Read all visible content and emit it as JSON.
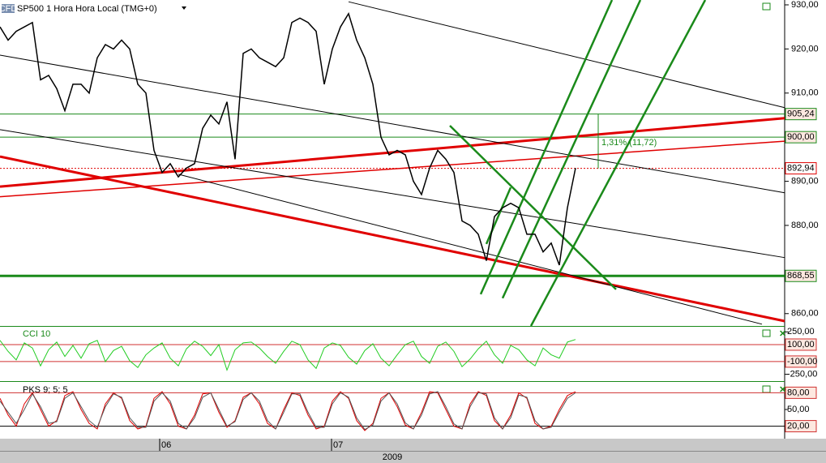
{
  "chart_data": {
    "type": "line",
    "title": "SP500 1 Hora Hora Local (TMG+0)",
    "logo": "CFD",
    "xlim": [
      0,
      96.8
    ],
    "x": [
      0,
      1,
      2,
      3,
      4,
      5,
      6,
      7,
      8,
      9,
      10,
      11,
      12,
      13,
      14,
      15,
      16,
      17,
      18,
      19,
      20,
      21,
      22,
      23,
      24,
      25,
      26,
      27,
      28,
      29,
      30,
      31,
      32,
      33,
      34,
      35,
      36,
      37,
      38,
      39,
      40,
      41,
      42,
      43,
      44,
      45,
      46,
      47,
      48,
      49,
      50,
      51,
      52,
      53,
      54,
      55,
      56,
      57,
      58,
      59,
      60,
      61,
      62,
      63,
      64,
      65,
      66,
      67,
      68,
      69,
      70,
      71
    ],
    "series": [
      {
        "color": "#000000",
        "values": [
          925,
          922,
          924,
          925,
          926,
          913,
          914,
          911,
          906,
          912,
          912,
          910,
          918,
          921,
          920,
          922,
          920,
          912,
          910,
          897,
          892,
          894,
          891,
          893,
          894,
          902,
          905,
          903,
          908,
          895,
          919,
          920,
          918,
          917,
          916,
          918,
          926,
          927,
          926,
          924,
          912,
          920,
          925,
          928,
          922,
          918,
          912,
          900,
          896,
          897,
          896,
          890,
          887,
          893,
          897,
          895,
          892,
          881,
          880,
          878,
          872,
          882,
          884,
          885,
          884,
          878,
          878,
          874,
          876,
          871,
          884,
          893
        ]
      }
    ],
    "ylim": [
      857.2,
      931.1
    ],
    "yticks": [
      {
        "value": 930,
        "label": "930,00"
      },
      {
        "value": 920,
        "label": "920,00"
      },
      {
        "value": 910,
        "label": "910,00"
      },
      {
        "value": 890,
        "label": "890,00"
      },
      {
        "value": 880,
        "label": "880,00"
      },
      {
        "value": 860,
        "label": "860,00"
      }
    ],
    "levels": [
      {
        "value": 905.24,
        "label": "905,24",
        "color": "#1a8a1a",
        "style": "solid"
      },
      {
        "value": 900,
        "label": "900,00",
        "color": "#1a8a1a",
        "style": "solid"
      },
      {
        "value": 892.94,
        "label": "892,94",
        "color": "#e00000",
        "style": "dotted"
      },
      {
        "value": 868.55,
        "label": "868,55",
        "color": "#1a8a1a",
        "style": "thick"
      }
    ],
    "trendlines": [
      {
        "x": [
          0,
          96.8
        ],
        "y": [
          895.6,
          858.3
        ],
        "color": "#e00000",
        "width": 3
      },
      {
        "x": [
          0,
          96.8
        ],
        "y": [
          888.8,
          904.3
        ],
        "color": "#e00000",
        "width": 3
      },
      {
        "x": [
          0,
          96.8
        ],
        "y": [
          886.5,
          899.1
        ],
        "color": "#e00000",
        "width": 1.5
      },
      {
        "x": [
          43,
          96.8
        ],
        "y": [
          930.7,
          906.7
        ],
        "color": "#000000",
        "width": 1
      },
      {
        "x": [
          0,
          96.8
        ],
        "y": [
          918.6,
          887.4
        ],
        "color": "#000000",
        "width": 1
      },
      {
        "x": [
          0,
          96.8
        ],
        "y": [
          901.7,
          872.7
        ],
        "color": "#000000",
        "width": 1
      },
      {
        "x": [
          22,
          94
        ],
        "y": [
          891.6,
          857.6
        ],
        "color": "#000000",
        "width": 1
      },
      {
        "x": [
          59.3,
          75.5
        ],
        "y": [
          864.4,
          931.1
        ],
        "color": "#1a8a1a",
        "width": 2.5
      },
      {
        "x": [
          65.5,
          87
        ],
        "y": [
          857.2,
          931.1
        ],
        "color": "#1a8a1a",
        "width": 2.5
      },
      {
        "x": [
          62,
          79
        ],
        "y": [
          863.5,
          931.1
        ],
        "color": "#1a8a1a",
        "width": 2.5
      },
      {
        "x": [
          55.5,
          76
        ],
        "y": [
          902.6,
          865.5
        ],
        "color": "#1a8a1a",
        "width": 2.5
      },
      {
        "x": [
          60,
          63
        ],
        "y": [
          875.8,
          888.6
        ],
        "color": "#1a8a1a",
        "width": 2.5
      }
    ],
    "annotation": "1,31% (11,72)",
    "time_labels": [
      {
        "x": 19.7,
        "label": "06"
      },
      {
        "x": 40.9,
        "label": "07"
      }
    ],
    "year_label": "2009",
    "cci": {
      "title": "CCI 10",
      "color": "#22cc22",
      "ylim": [
        -330,
        310
      ],
      "yticks": [
        {
          "value": 250,
          "label": "250,00"
        },
        {
          "value": 100,
          "label": "100,00"
        },
        {
          "value": -100,
          "label": "-100,00"
        },
        {
          "value": -250,
          "label": "-250,00"
        }
      ],
      "values": [
        150,
        20,
        -80,
        120,
        60,
        -150,
        40,
        130,
        -40,
        90,
        -60,
        110,
        150,
        -100,
        30,
        80,
        -90,
        -170,
        -20,
        60,
        120,
        -60,
        -150,
        50,
        140,
        80,
        -30,
        100,
        -200,
        40,
        120,
        130,
        60,
        -40,
        -120,
        20,
        140,
        100,
        -80,
        -180,
        60,
        120,
        90,
        -50,
        -130,
        30,
        110,
        -60,
        -150,
        -20,
        100,
        140,
        -40,
        -120,
        80,
        130,
        20,
        -160,
        -70,
        50,
        140,
        -20,
        -120,
        90,
        40,
        -80,
        -150,
        60,
        -20,
        -60,
        130,
        160
      ]
    },
    "pks": {
      "title": "PKS 9; 5; 5",
      "ylim": [
        -1,
        99.5
      ],
      "yticks": [
        {
          "value": 80,
          "label": "80,00"
        },
        {
          "value": 50,
          "label": "50,00"
        },
        {
          "value": 20,
          "label": "20,00"
        }
      ],
      "series": [
        {
          "color": "#e00000",
          "values": [
            70,
            40,
            20,
            60,
            80,
            50,
            20,
            30,
            75,
            82,
            50,
            25,
            15,
            60,
            80,
            70,
            30,
            15,
            20,
            70,
            82,
            60,
            20,
            15,
            40,
            78,
            80,
            45,
            18,
            30,
            72,
            80,
            60,
            25,
            15,
            50,
            80,
            75,
            40,
            15,
            20,
            65,
            82,
            70,
            30,
            12,
            25,
            70,
            80,
            55,
            22,
            15,
            45,
            82,
            80,
            50,
            20,
            15,
            60,
            82,
            75,
            30,
            15,
            40,
            80,
            70,
            25,
            15,
            20,
            50,
            75,
            82
          ]
        },
        {
          "color": "#555555",
          "values": [
            65,
            45,
            25,
            50,
            78,
            55,
            25,
            28,
            70,
            80,
            55,
            30,
            18,
            55,
            78,
            72,
            35,
            18,
            18,
            65,
            80,
            65,
            25,
            15,
            35,
            72,
            80,
            50,
            20,
            28,
            68,
            80,
            65,
            30,
            15,
            45,
            78,
            78,
            45,
            18,
            18,
            60,
            80,
            72,
            35,
            14,
            22,
            65,
            80,
            60,
            26,
            15,
            40,
            78,
            82,
            55,
            24,
            15,
            55,
            80,
            78,
            35,
            15,
            35,
            76,
            72,
            30,
            15,
            18,
            45,
            70,
            80
          ]
        }
      ]
    }
  }
}
